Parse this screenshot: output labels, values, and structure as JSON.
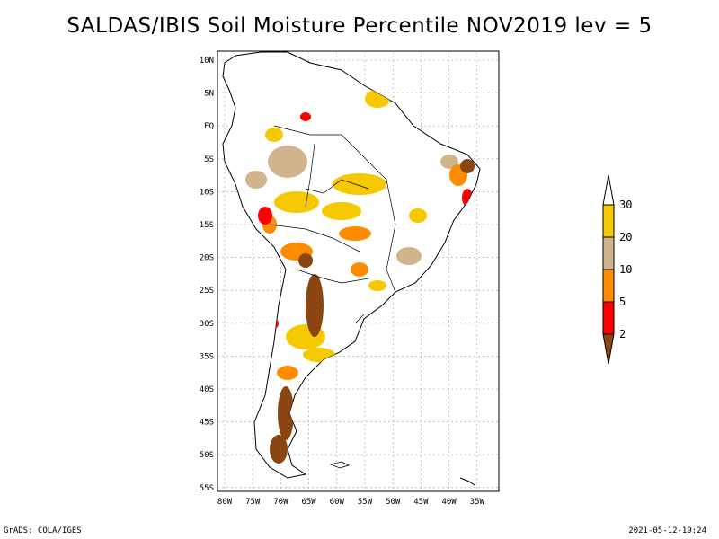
{
  "title": "SALDAS/IBIS Soil Moisture Percentile NOV2019 lev = 5",
  "map": {
    "lat_labels": [
      "10N",
      "5N",
      "EQ",
      "5S",
      "10S",
      "15S",
      "20S",
      "25S",
      "30S",
      "35S",
      "40S",
      "45S",
      "50S",
      "55S"
    ],
    "lon_labels": [
      "80W",
      "75W",
      "70W",
      "65W",
      "60W",
      "55W",
      "50W",
      "45W",
      "40W",
      "35W"
    ]
  },
  "legend": {
    "labels": [
      "30",
      "20",
      "10",
      "5",
      "2"
    ],
    "colors": {
      "above30": "#ffffff",
      "20-30": "#f5c800",
      "10-20": "#d2b48c",
      "5-10": "#ff8c00",
      "2-5": "#ff0000",
      "below2": "#8b4513"
    }
  },
  "footer": {
    "left": "GrADS: COLA/IGES",
    "right": "2021-05-12-19:24"
  }
}
